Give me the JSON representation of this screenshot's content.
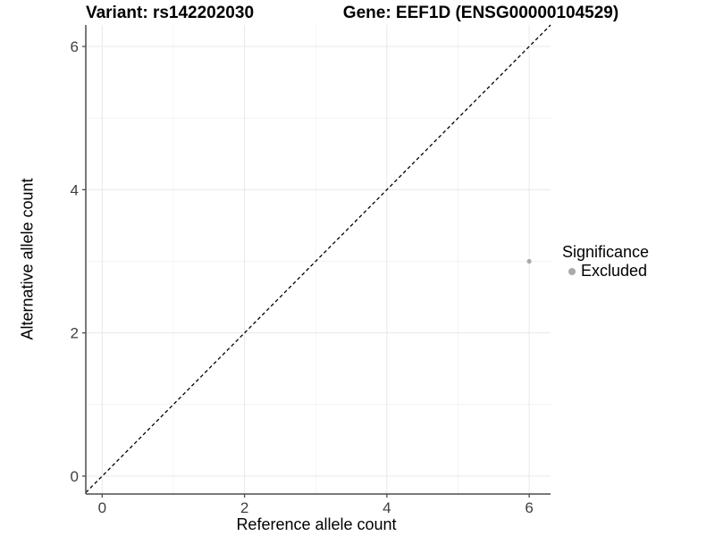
{
  "header": {
    "title_left": "Variant: rs142202030",
    "title_right": "Gene: EEF1D (ENSG00000104529)"
  },
  "chart_data": {
    "type": "scatter",
    "xlabel": "Reference allele count",
    "ylabel": "Alternative allele count",
    "xlim": [
      -0.23,
      6.3
    ],
    "ylim": [
      -0.25,
      6.3
    ],
    "x_major_ticks": [
      0,
      2,
      4,
      6
    ],
    "y_major_ticks": [
      0,
      2,
      4,
      6
    ],
    "x_minor_ticks": [
      1,
      3,
      5
    ],
    "y_minor_ticks": [
      1,
      3,
      5
    ],
    "grid": "major and minor, light gray on white panel",
    "reference_line": {
      "kind": "identity y=x",
      "style": "dashed",
      "color": "#000000"
    },
    "series": [
      {
        "name": "Excluded",
        "color": "#aaaaaa",
        "points": [
          {
            "x": 6,
            "y": 3
          }
        ]
      }
    ],
    "legend": {
      "title": "Significance",
      "position": "right",
      "entries": [
        {
          "label": "Excluded",
          "color": "#aaaaaa"
        }
      ]
    },
    "style_colors": {
      "axis_line": "#4d4d4d",
      "tick_label": "#404040",
      "grid_major": "#e8e8e8",
      "grid_minor": "#f4f4f4",
      "background": "#ffffff"
    }
  }
}
